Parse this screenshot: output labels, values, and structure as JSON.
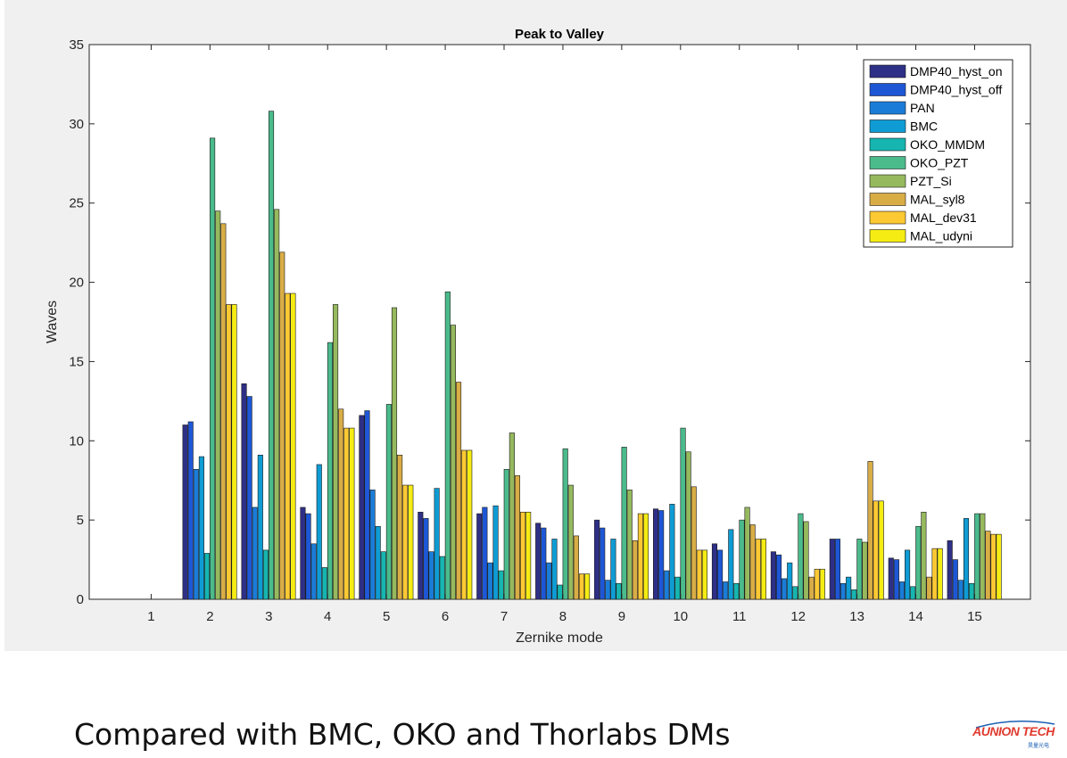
{
  "caption": "Compared with BMC, OKO and Thorlabs DMs",
  "logo": {
    "name": "AUNION TECH",
    "subtext": "昊量光电"
  },
  "chart_data": {
    "type": "bar",
    "title": "Peak to Valley",
    "xlabel": "Zernike mode",
    "ylabel": "Waves",
    "ylim": [
      0,
      35
    ],
    "yticks": [
      0,
      5,
      10,
      15,
      20,
      25,
      30,
      35
    ],
    "categories": [
      "1",
      "2",
      "3",
      "4",
      "5",
      "6",
      "7",
      "8",
      "9",
      "10",
      "11",
      "12",
      "13",
      "14",
      "15"
    ],
    "legend_position": "top-right",
    "grid": false,
    "series": [
      {
        "name": "DMP40_hyst_on",
        "color": "#2e2f86",
        "values": [
          0,
          11.0,
          13.6,
          5.8,
          11.6,
          5.5,
          5.4,
          4.8,
          5.0,
          5.7,
          3.5,
          3.0,
          3.8,
          2.6,
          3.7
        ]
      },
      {
        "name": "DMP40_hyst_off",
        "color": "#1e57d6",
        "values": [
          0,
          11.2,
          12.8,
          5.4,
          11.9,
          5.1,
          5.8,
          4.5,
          4.5,
          5.6,
          3.1,
          2.8,
          3.8,
          2.5,
          2.5
        ]
      },
      {
        "name": "PAN",
        "color": "#1b7cd8",
        "values": [
          0,
          8.2,
          5.8,
          3.5,
          6.9,
          3.0,
          2.3,
          2.3,
          1.2,
          1.8,
          1.1,
          1.3,
          1.0,
          1.1,
          1.2
        ]
      },
      {
        "name": "BMC",
        "color": "#0f9cd4",
        "values": [
          0,
          9.0,
          9.1,
          8.5,
          4.6,
          7.0,
          5.9,
          3.8,
          3.8,
          6.0,
          4.4,
          2.3,
          1.4,
          3.1,
          5.1
        ]
      },
      {
        "name": "OKO_MMDM",
        "color": "#16b5b0",
        "values": [
          0,
          2.9,
          3.1,
          2.0,
          3.0,
          2.7,
          1.8,
          0.9,
          1.0,
          1.4,
          1.0,
          0.8,
          0.6,
          0.8,
          1.0
        ]
      },
      {
        "name": "OKO_PZT",
        "color": "#4bbb8c",
        "values": [
          0,
          29.1,
          30.8,
          16.2,
          12.3,
          19.4,
          8.2,
          9.5,
          9.6,
          10.8,
          5.0,
          5.4,
          3.8,
          4.6,
          5.4
        ]
      },
      {
        "name": "PZT_Si",
        "color": "#96b95e",
        "values": [
          0,
          24.5,
          24.6,
          18.6,
          18.4,
          17.3,
          10.5,
          7.2,
          6.9,
          9.3,
          5.8,
          4.9,
          3.6,
          5.5,
          5.4
        ]
      },
      {
        "name": "MAL_syl8",
        "color": "#d9ad46",
        "values": [
          0,
          23.7,
          21.9,
          12.0,
          9.1,
          13.7,
          7.8,
          4.0,
          3.7,
          7.1,
          4.7,
          1.4,
          8.7,
          1.4,
          4.3
        ]
      },
      {
        "name": "MAL_dev31",
        "color": "#fcc933",
        "values": [
          0,
          18.6,
          19.3,
          10.8,
          7.2,
          9.4,
          5.5,
          1.6,
          5.4,
          3.1,
          3.8,
          1.9,
          6.2,
          3.2,
          4.1
        ]
      },
      {
        "name": "MAL_udyni",
        "color": "#f5ec14",
        "values": [
          0,
          18.6,
          19.3,
          10.8,
          7.2,
          9.4,
          5.5,
          1.6,
          5.4,
          3.1,
          3.8,
          1.9,
          6.2,
          3.2,
          4.1
        ]
      }
    ]
  }
}
